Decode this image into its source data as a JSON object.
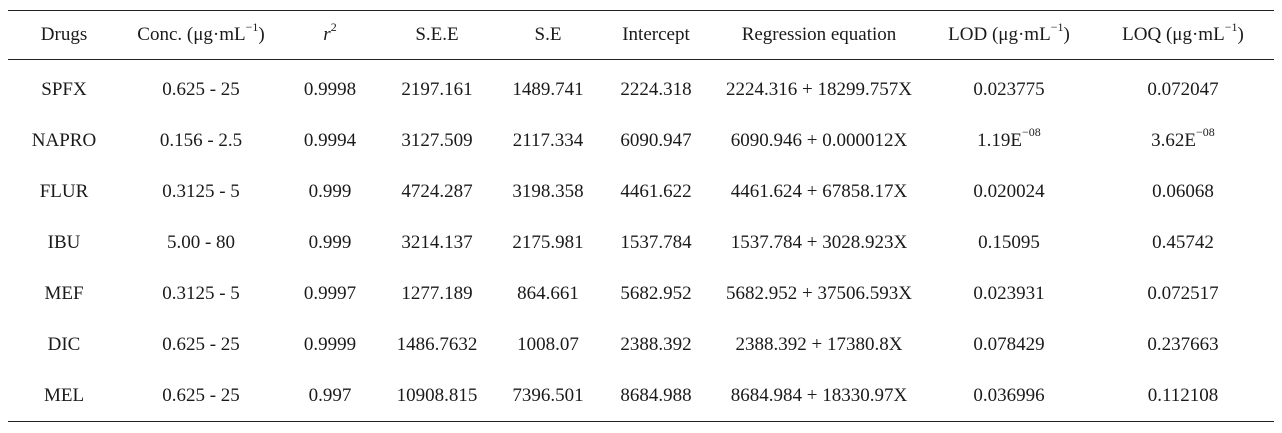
{
  "table": {
    "headers": {
      "drugs": "Drugs",
      "conc_base": "Conc. (μg·mL",
      "conc_sup": "−1",
      "conc_close": ")",
      "r2_base": "r",
      "r2_sup": "2",
      "see": "S.E.E",
      "se": "S.E",
      "intercept": "Intercept",
      "regression": "Regression equation",
      "lod_base": "LOD (μg·mL",
      "lod_sup": "−1",
      "lod_close": ")",
      "loq_base": "LOQ (μg·mL",
      "loq_sup": "−1",
      "loq_close": ")"
    },
    "rows": [
      {
        "drug": "SPFX",
        "conc": "0.625 - 25",
        "r2": "0.9998",
        "see": "2197.161",
        "se": "1489.741",
        "intercept": "2224.318",
        "regression": "2224.316 + 18299.757X",
        "lod": "0.023775",
        "lod_sup": "",
        "loq": "0.072047",
        "loq_sup": ""
      },
      {
        "drug": "NAPRO",
        "conc": "0.156 - 2.5",
        "r2": "0.9994",
        "see": "3127.509",
        "se": "2117.334",
        "intercept": "6090.947",
        "regression": "6090.946 + 0.000012X",
        "lod": "1.19E",
        "lod_sup": "−08",
        "loq": "3.62E",
        "loq_sup": "−08"
      },
      {
        "drug": "FLUR",
        "conc": "0.3125 - 5",
        "r2": "0.999",
        "see": "4724.287",
        "se": "3198.358",
        "intercept": "4461.622",
        "regression": "4461.624 + 67858.17X",
        "lod": "0.020024",
        "lod_sup": "",
        "loq": "0.06068",
        "loq_sup": ""
      },
      {
        "drug": "IBU",
        "conc": "5.00 - 80",
        "r2": "0.999",
        "see": "3214.137",
        "se": "2175.981",
        "intercept": "1537.784",
        "regression": "1537.784 + 3028.923X",
        "lod": "0.15095",
        "lod_sup": "",
        "loq": "0.45742",
        "loq_sup": ""
      },
      {
        "drug": "MEF",
        "conc": "0.3125 - 5",
        "r2": "0.9997",
        "see": "1277.189",
        "se": "864.661",
        "intercept": "5682.952",
        "regression": "5682.952 + 37506.593X",
        "lod": "0.023931",
        "lod_sup": "",
        "loq": "0.072517",
        "loq_sup": ""
      },
      {
        "drug": "DIC",
        "conc": "0.625 - 25",
        "r2": "0.9999",
        "see": "1486.7632",
        "se": "1008.07",
        "intercept": "2388.392",
        "regression": "2388.392 + 17380.8X",
        "lod": "0.078429",
        "lod_sup": "",
        "loq": "0.237663",
        "loq_sup": ""
      },
      {
        "drug": "MEL",
        "conc": "0.625 - 25",
        "r2": "0.997",
        "see": "10908.815",
        "se": "7396.501",
        "intercept": "8684.988",
        "regression": "8684.984 + 18330.97X",
        "lod": "0.036996",
        "lod_sup": "",
        "loq": "0.112108",
        "loq_sup": ""
      }
    ]
  }
}
